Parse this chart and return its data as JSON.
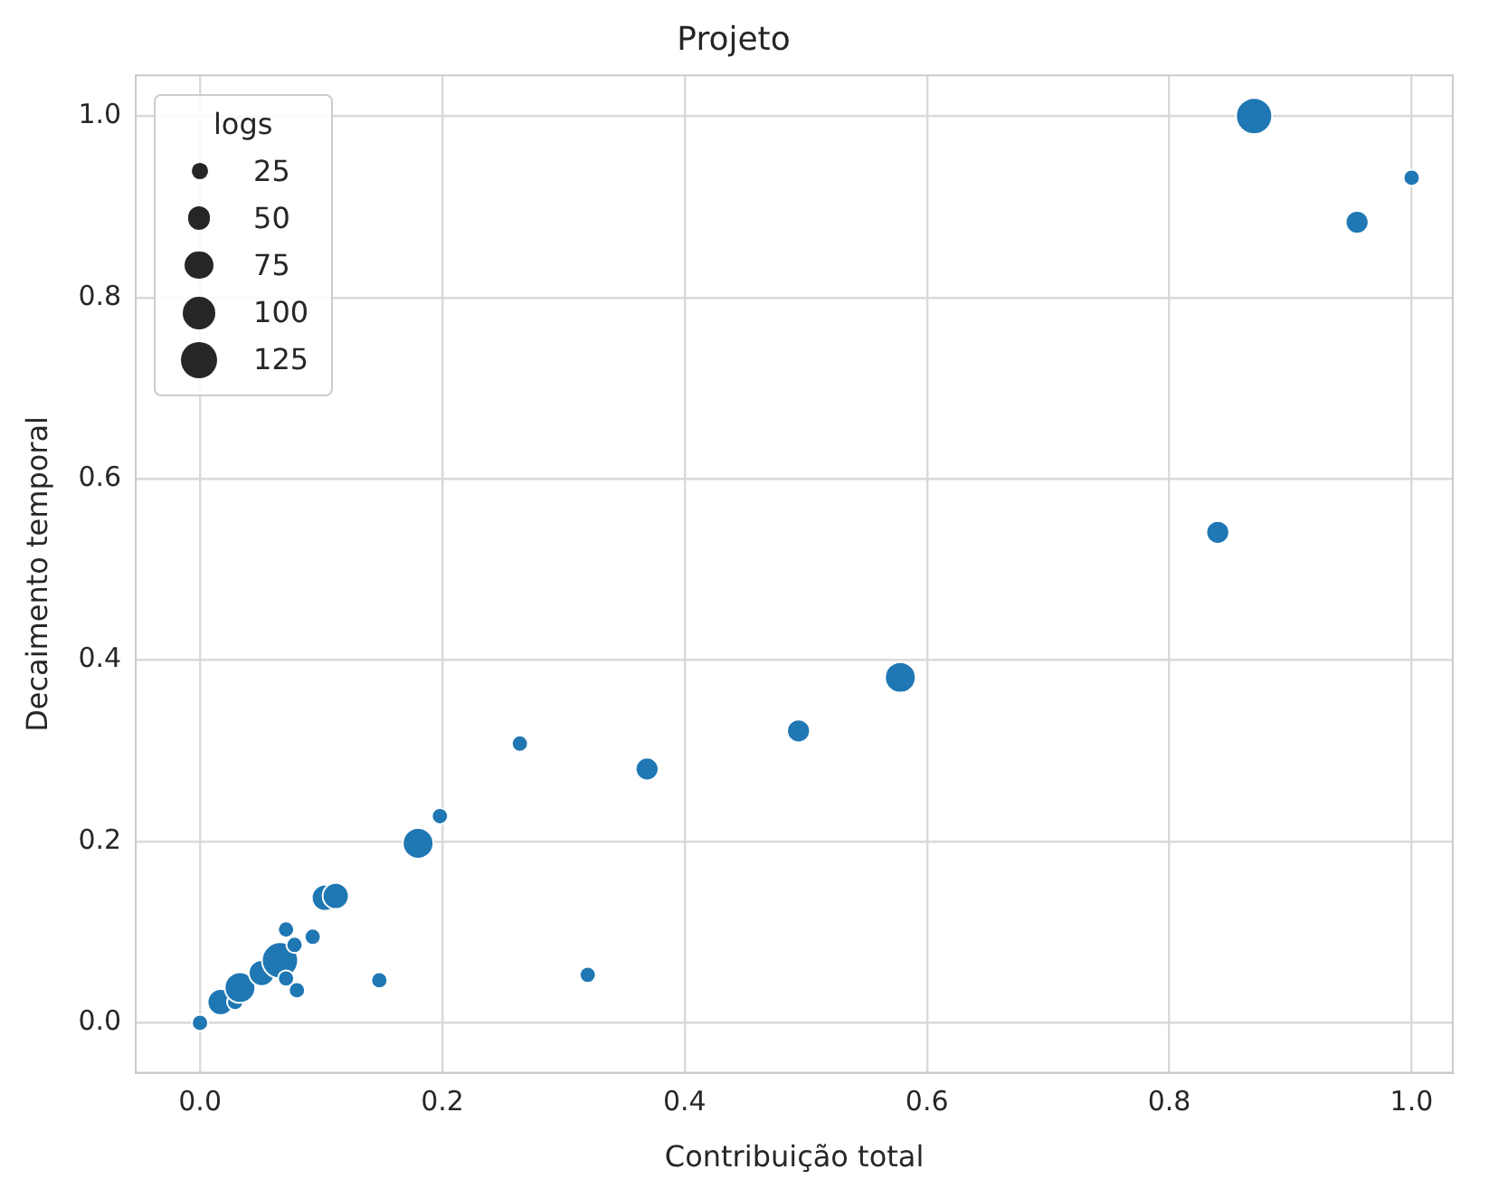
{
  "chart_data": {
    "type": "bubble",
    "title": "Projeto",
    "xlabel": "Contribuição total",
    "ylabel": "Decaimento temporal",
    "legend_title": "logs",
    "grid": true,
    "marker": "circle",
    "xlim": [
      -0.053,
      1.034
    ],
    "ylim": [
      -0.055,
      1.045
    ],
    "xticks": [
      {
        "value": 0,
        "label": "0.0"
      },
      0.2,
      0.4,
      0.6,
      0.8,
      {
        "value": 1,
        "label": "1.0"
      }
    ],
    "yticks": [
      {
        "value": 0,
        "label": "0.0"
      },
      0.2,
      0.4,
      0.6,
      0.8,
      {
        "value": 1,
        "label": "1.0"
      }
    ],
    "size_legend": [
      25,
      50,
      75,
      100,
      125
    ],
    "series": [
      {
        "color": "#1f77b4",
        "x": [
          0.0,
          0.017,
          0.029,
          0.033,
          0.051,
          0.066,
          0.071,
          0.071,
          0.078,
          0.08,
          0.093,
          0.103,
          0.112,
          0.148,
          0.18,
          0.198,
          0.264,
          0.32,
          0.369,
          0.494,
          0.578,
          0.84,
          0.87,
          0.955,
          1.0
        ],
        "values": [
          0.0,
          0.023,
          0.023,
          0.039,
          0.055,
          0.069,
          0.049,
          0.103,
          0.086,
          0.036,
          0.095,
          0.138,
          0.14,
          0.047,
          0.198,
          0.228,
          0.308,
          0.053,
          0.28,
          0.322,
          0.381,
          0.541,
          1.0,
          0.883,
          0.932
        ],
        "sizes": [
          25,
          65,
          25,
          90,
          65,
          125,
          25,
          25,
          25,
          25,
          25,
          65,
          65,
          25,
          90,
          25,
          25,
          25,
          50,
          50,
          90,
          50,
          125,
          50,
          25
        ]
      }
    ]
  }
}
